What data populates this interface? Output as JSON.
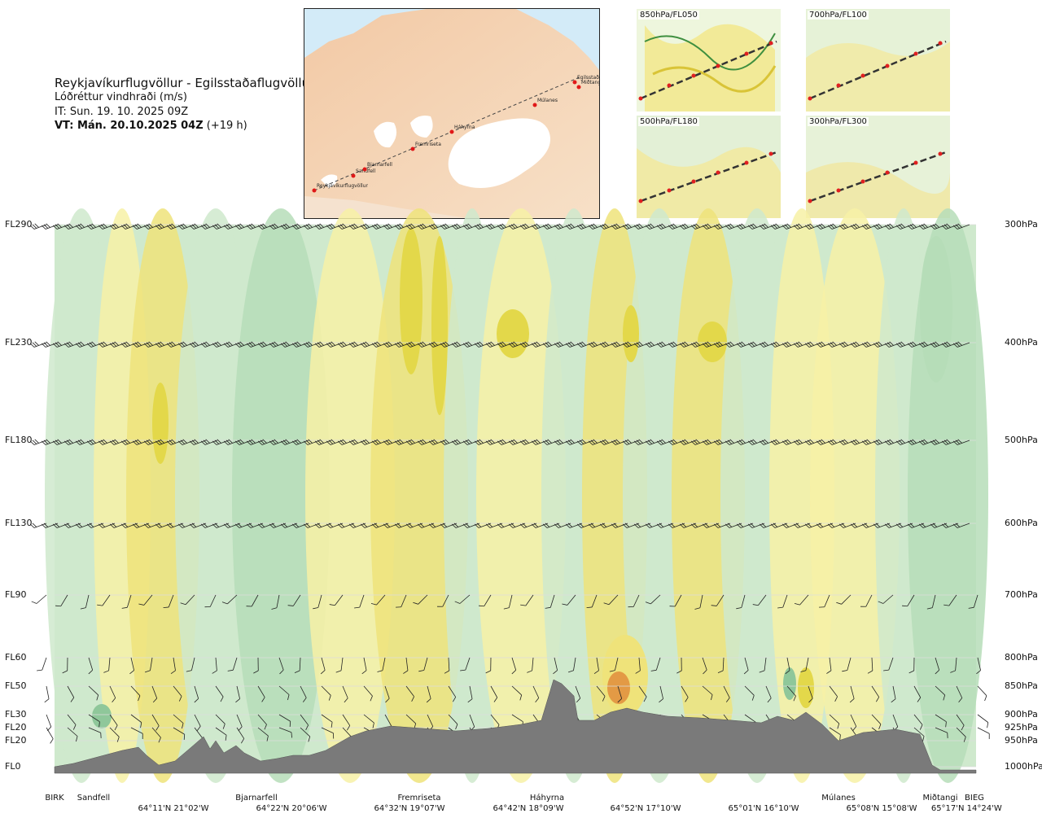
{
  "header": {
    "title": "Reykjavíkurflugvöllur - Egilsstaðaflugvöllur",
    "subtitle": "Lóðréttur vindhraði (m/s)",
    "issue_time": "IT: Sun. 19. 10. 2025 09Z",
    "valid_time_bold": "VT: Mán. 20.10.2025 04Z",
    "valid_time_offset": "(+19 h)"
  },
  "route_map": {
    "stations": [
      "Reykjavíkurflugvöllur",
      "Sandfell",
      "Bjarnarfell",
      "Fremriseta",
      "Háhyrna",
      "Múlanes",
      "Egilsstaðir",
      "Miðtangi"
    ]
  },
  "panels": [
    {
      "label": "850hPa/FL050"
    },
    {
      "label": "700hPa/FL100"
    },
    {
      "label": "500hPa/FL180"
    },
    {
      "label": "300hPa/FL300"
    }
  ],
  "chart_data": {
    "type": "heatmap",
    "title": "Lóðréttur vindhraði (m/s)",
    "left_axis_labels": [
      "FL290",
      "FL230",
      "FL180",
      "FL130",
      "FL90",
      "FL60",
      "FL50",
      "FL30",
      "FL20",
      "FL20",
      "FL0"
    ],
    "right_axis_labels": [
      "300hPa",
      "400hPa",
      "500hPa",
      "600hPa",
      "700hPa",
      "800hPa",
      "850hPa",
      "900hPa",
      "925hPa",
      "950hPa",
      "1000hPa"
    ],
    "pressure_levels_hpa": [
      300,
      400,
      500,
      600,
      700,
      800,
      850,
      900,
      925,
      950,
      1000
    ],
    "locations": [
      "BIRK",
      "Sandfell",
      "Bjarnarfell",
      "Fremriseta",
      "Háhyrna",
      "Múlanes",
      "Miðtangi",
      "BIEG"
    ],
    "coordinates": [
      "64°11'N 21°02'W",
      "64°22'N 20°06'W",
      "64°32'N 19°07'W",
      "64°42'N 18°09'W",
      "64°52'N 17°10'W",
      "65°01'N 16°10'W",
      "65°08'N 15°08'W",
      "65°17'N 14°24'W"
    ],
    "colors": {
      "positive_light": "#f7f1a6",
      "positive_mid": "#efe37a",
      "positive_strong": "#e3d84a",
      "positive_max": "#e39a45",
      "negative_light": "#cfe9cd",
      "negative_mid": "#b6ddb8",
      "negative_strong": "#8fc79a",
      "neutral": "#f7fbee",
      "terrain": "#7a7a7a"
    }
  }
}
